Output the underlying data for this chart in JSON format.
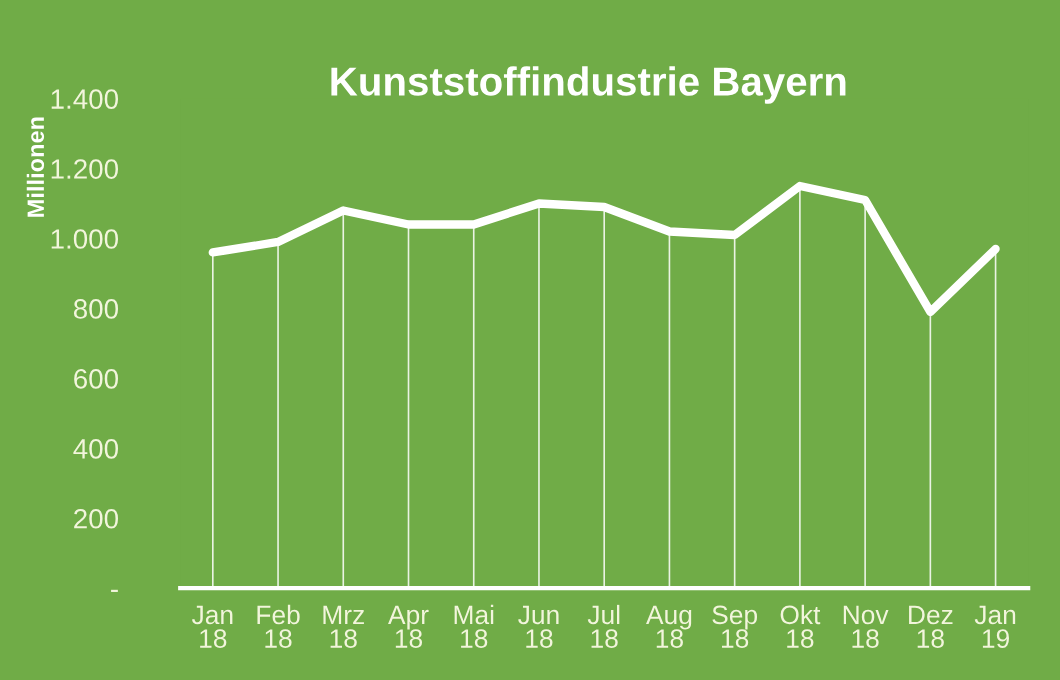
{
  "chart_data": {
    "type": "line",
    "title": "Kunststoffindustrie Bayern",
    "ylabel": "Millionen",
    "categories": [
      "Jan\n18",
      "Feb\n18",
      "Mrz\n18",
      "Apr\n18",
      "Mai\n18",
      "Jun\n18",
      "Jul\n18",
      "Aug\n18",
      "Sep\n18",
      "Okt\n18",
      "Nov\n18",
      "Dez\n18",
      "Jan\n19"
    ],
    "series": [
      {
        "color": "#ffffff",
        "values": [
          960,
          990,
          1080,
          1040,
          1040,
          1100,
          1090,
          1020,
          1010,
          1150,
          1110,
          790,
          970
        ]
      },
      {
        "type": "bar",
        "color": "#ffffff",
        "values": [
          960,
          990,
          1080,
          1040,
          1040,
          1100,
          1090,
          1020,
          1010,
          1150,
          1110,
          790,
          970
        ]
      }
    ],
    "ylim": [
      0,
      1400
    ],
    "yticks": [
      {
        "value": 0,
        "label": "-"
      },
      {
        "value": 200,
        "label": "200"
      },
      {
        "value": 400,
        "label": "400"
      },
      {
        "value": 600,
        "label": "600"
      },
      {
        "value": 800,
        "label": "800"
      },
      {
        "value": 1000,
        "label": "1.000"
      },
      {
        "value": 1200,
        "label": "1.200"
      },
      {
        "value": 1400,
        "label": "1.400"
      }
    ],
    "grid": false,
    "marker": "none",
    "line_style": "solid",
    "legend": false
  }
}
